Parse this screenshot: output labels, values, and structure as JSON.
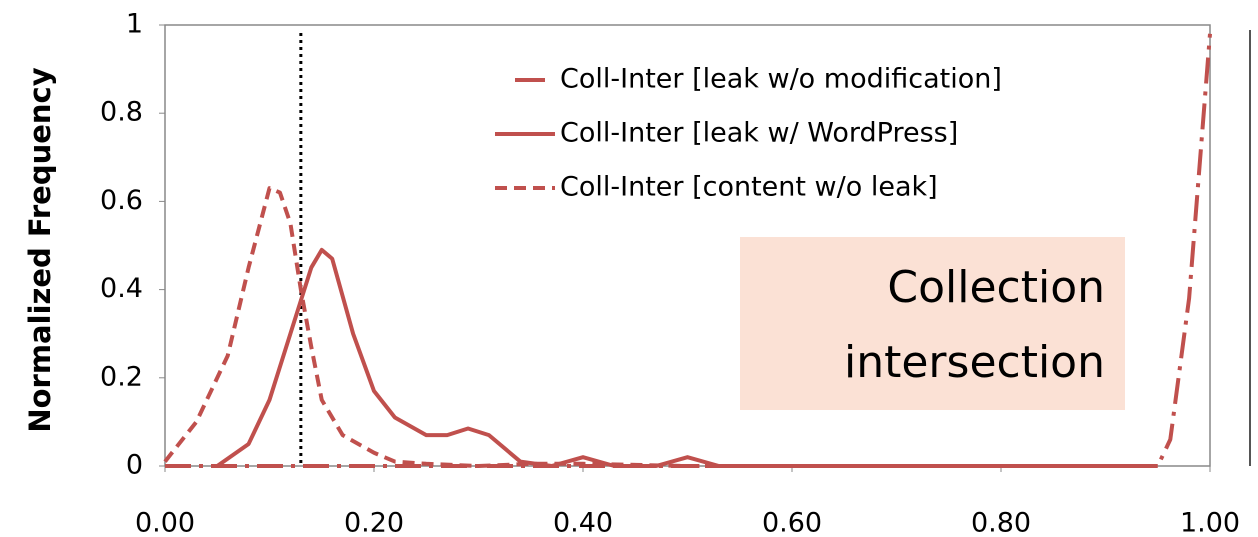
{
  "chart_data": {
    "type": "line",
    "y_label": "Normalized Frequency",
    "annotation": "Collection intersection",
    "annotation_lines": [
      "Collection",
      "intersection"
    ],
    "xlim": [
      0,
      1
    ],
    "ylim": [
      0,
      1
    ],
    "xticks": [
      {
        "value": 0,
        "label": "0.00"
      },
      {
        "value": 0.2,
        "label": "0.20"
      },
      {
        "value": 0.4,
        "label": "0.40"
      },
      {
        "value": 0.6,
        "label": "0.60"
      },
      {
        "value": 0.8,
        "label": "0.80"
      },
      {
        "value": 1,
        "label": "1.00"
      }
    ],
    "yticks": [
      0,
      0.2,
      0.4,
      0.6,
      0.8,
      1
    ],
    "vline": 0.13,
    "series": [
      {
        "name": "Coll-Inter [leak w/o modification]",
        "color": "#c0504d",
        "dash": "dashdot",
        "x": [
          0,
          0.2,
          0.4,
          0.6,
          0.8,
          0.95,
          0.962,
          0.98,
          0.995,
          1.0
        ],
        "values": [
          0,
          0,
          0,
          0,
          0,
          0,
          0.06,
          0.38,
          0.83,
          0.98
        ]
      },
      {
        "name": "Coll-Inter [leak w/  WordPress]",
        "color": "#c0504d",
        "dash": "solid",
        "x": [
          0.05,
          0.08,
          0.1,
          0.12,
          0.14,
          0.15,
          0.16,
          0.18,
          0.2,
          0.22,
          0.25,
          0.27,
          0.29,
          0.31,
          0.34,
          0.37,
          0.4,
          0.43,
          0.47,
          0.5,
          0.53,
          0.6,
          0.8,
          0.95
        ],
        "values": [
          0,
          0.05,
          0.15,
          0.3,
          0.45,
          0.49,
          0.47,
          0.3,
          0.17,
          0.11,
          0.07,
          0.07,
          0.085,
          0.07,
          0.01,
          0,
          0.02,
          0,
          0,
          0.02,
          0,
          0,
          0,
          0
        ]
      },
      {
        "name": "Coll-Inter [content w/o leak]",
        "color": "#c0504d",
        "dash": "dashed",
        "x": [
          0,
          0.03,
          0.06,
          0.08,
          0.1,
          0.11,
          0.12,
          0.13,
          0.14,
          0.15,
          0.17,
          0.2,
          0.22,
          0.25,
          0.3,
          0.35,
          0.4,
          0.5,
          0.6
        ],
        "values": [
          0.01,
          0.1,
          0.25,
          0.45,
          0.63,
          0.62,
          0.55,
          0.4,
          0.27,
          0.15,
          0.07,
          0.03,
          0.01,
          0.005,
          0,
          0.005,
          0.005,
          0,
          0
        ]
      }
    ]
  }
}
